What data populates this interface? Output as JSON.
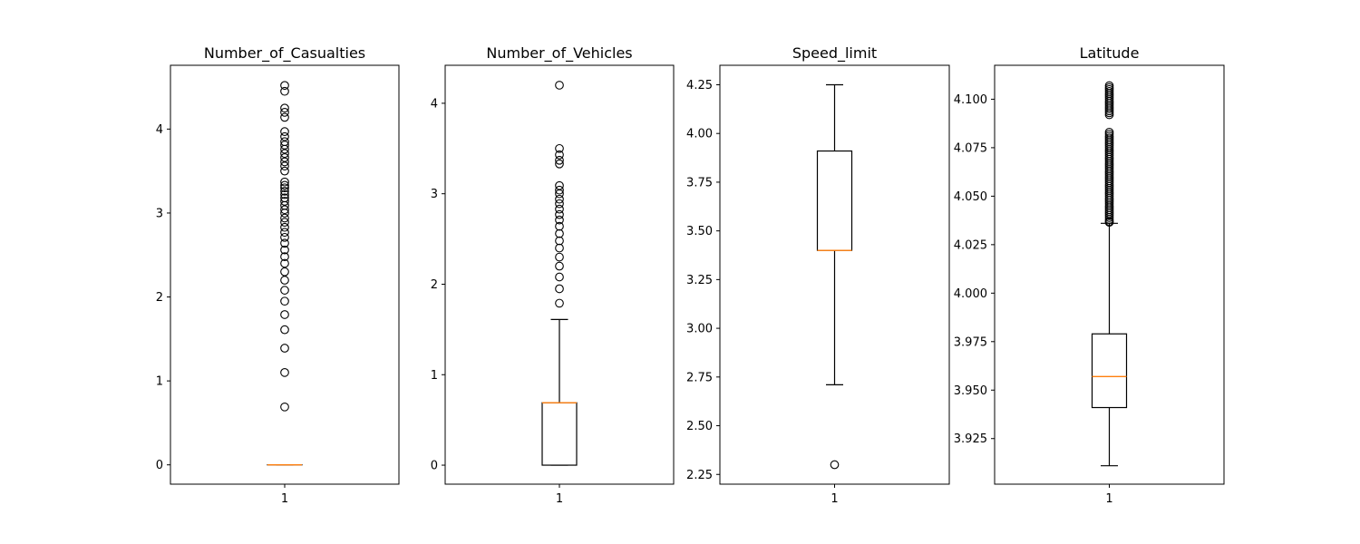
{
  "chart_data": [
    {
      "type": "box",
      "title": "Number_of_Casualties",
      "xticks": [
        "1"
      ],
      "ylim": [
        -0.23,
        4.76
      ],
      "yticks": [
        0,
        1,
        2,
        3,
        4
      ],
      "ytick_labels": [
        "0",
        "1",
        "2",
        "3",
        "4"
      ],
      "box": {
        "q1": 0.0,
        "median": 0.0,
        "q3": 0.0,
        "whisker_low": 0.0,
        "whisker_high": 0.0
      },
      "outliers": [
        0.69,
        1.1,
        1.39,
        1.61,
        1.79,
        1.95,
        2.08,
        2.2,
        2.3,
        2.4,
        2.48,
        2.56,
        2.64,
        2.71,
        2.77,
        2.83,
        2.89,
        2.94,
        3.0,
        3.04,
        3.09,
        3.14,
        3.18,
        3.22,
        3.26,
        3.3,
        3.33,
        3.37,
        3.5,
        3.56,
        3.61,
        3.66,
        3.71,
        3.76,
        3.81,
        3.85,
        3.91,
        3.97,
        4.14,
        4.2,
        4.25,
        4.45,
        4.52
      ]
    },
    {
      "type": "box",
      "title": "Number_of_Vehicles",
      "xticks": [
        "1"
      ],
      "ylim": [
        -0.21,
        4.42
      ],
      "yticks": [
        0,
        1,
        2,
        3,
        4
      ],
      "ytick_labels": [
        "0",
        "1",
        "2",
        "3",
        "4"
      ],
      "box": {
        "q1": 0.0,
        "median": 0.69,
        "q3": 0.69,
        "whisker_low": 0.0,
        "whisker_high": 1.61
      },
      "outliers": [
        1.79,
        1.95,
        2.08,
        2.2,
        2.3,
        2.4,
        2.48,
        2.56,
        2.64,
        2.71,
        2.77,
        2.83,
        2.89,
        2.94,
        3.0,
        3.04,
        3.09,
        3.33,
        3.37,
        3.43,
        3.5,
        4.2
      ]
    },
    {
      "type": "box",
      "title": "Speed_limit",
      "xticks": [
        "1"
      ],
      "ylim": [
        2.2,
        4.35
      ],
      "yticks": [
        2.25,
        2.5,
        2.75,
        3.0,
        3.25,
        3.5,
        3.75,
        4.0,
        4.25
      ],
      "ytick_labels": [
        "2.25",
        "2.50",
        "2.75",
        "3.00",
        "3.25",
        "3.50",
        "3.75",
        "4.00",
        "4.25"
      ],
      "box": {
        "q1": 3.4,
        "median": 3.4,
        "q3": 3.91,
        "whisker_low": 2.71,
        "whisker_high": 4.25
      },
      "outliers": [
        2.3
      ]
    },
    {
      "type": "box",
      "title": "Latitude",
      "xticks": [
        "1"
      ],
      "ylim": [
        3.9015,
        4.1175
      ],
      "yticks": [
        3.925,
        3.95,
        3.975,
        4.0,
        4.025,
        4.05,
        4.075,
        4.1
      ],
      "ytick_labels": [
        "3.925",
        "3.950",
        "3.975",
        "4.000",
        "4.025",
        "4.050",
        "4.075",
        "4.100"
      ],
      "box": {
        "q1": 3.941,
        "median": 3.957,
        "q3": 3.979,
        "whisker_low": 3.911,
        "whisker_high": 4.036
      },
      "outliers": [
        4.0365,
        4.037,
        4.038,
        4.039,
        4.04,
        4.041,
        4.042,
        4.043,
        4.044,
        4.045,
        4.046,
        4.047,
        4.048,
        4.049,
        4.05,
        4.051,
        4.052,
        4.053,
        4.054,
        4.055,
        4.056,
        4.057,
        4.058,
        4.059,
        4.06,
        4.061,
        4.062,
        4.063,
        4.064,
        4.065,
        4.066,
        4.067,
        4.068,
        4.069,
        4.07,
        4.071,
        4.072,
        4.073,
        4.074,
        4.075,
        4.076,
        4.077,
        4.078,
        4.079,
        4.08,
        4.081,
        4.082,
        4.083,
        4.092,
        4.093,
        4.094,
        4.095,
        4.096,
        4.097,
        4.098,
        4.099,
        4.1,
        4.101,
        4.102,
        4.103,
        4.104,
        4.105,
        4.106,
        4.107
      ]
    }
  ],
  "colors": {
    "box": "#000000",
    "median": "#ff7f0e",
    "flier": "#000000",
    "background": "#ffffff"
  }
}
